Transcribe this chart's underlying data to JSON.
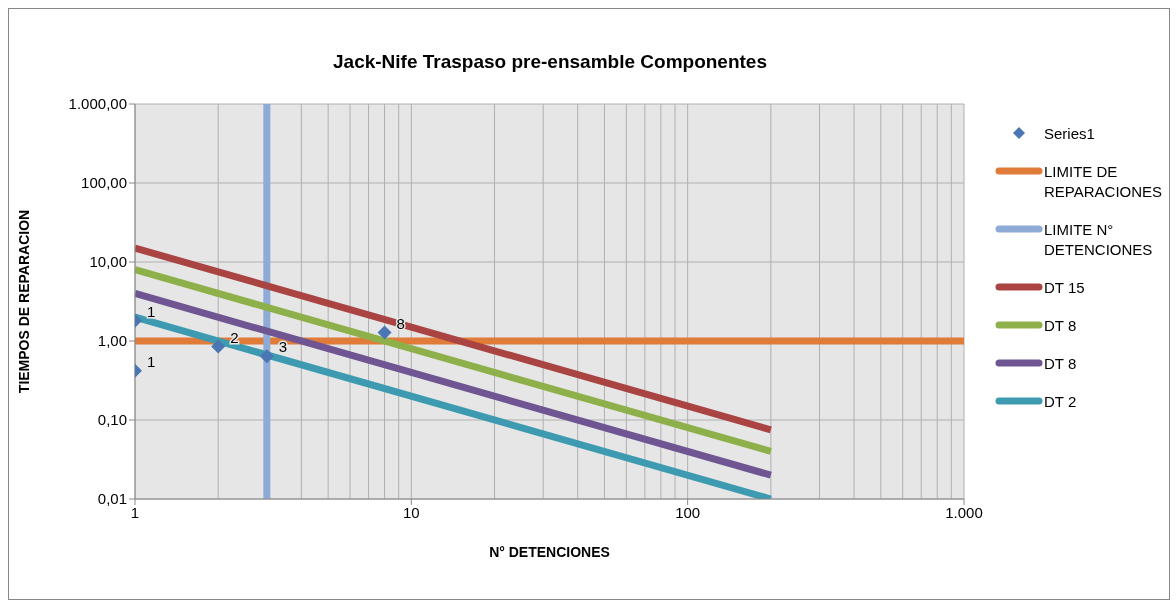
{
  "chart_data": {
    "type": "line",
    "title": "Jack-Nife Traspaso pre-ensamble Componentes",
    "xlabel": "N° DETENCIONES",
    "ylabel": "TIEMPOS DE REPARACION",
    "annotations": [
      {
        "text": "1",
        "x": 1,
        "y": 1.8
      },
      {
        "text": "1",
        "x": 1,
        "y": 0.42
      },
      {
        "text": "2",
        "x": 2,
        "y": 0.85
      },
      {
        "text": "3",
        "x": 3,
        "y": 0.64
      },
      {
        "text": "8",
        "x": 8,
        "y": 1.28
      }
    ],
    "log": "xy",
    "grid": true,
    "legend": "right",
    "xlim": [
      1,
      1000
    ],
    "xticks": [
      1,
      10,
      100,
      {
        "value": 1000,
        "label": "1.000"
      }
    ],
    "ylim": [
      0.01,
      1000
    ],
    "yticks": [
      {
        "value": 0.01,
        "label": "0,01"
      },
      {
        "value": 0.1,
        "label": "0,10"
      },
      {
        "value": 1,
        "label": "1,00"
      },
      {
        "value": 10,
        "label": "10,00"
      },
      {
        "value": 100,
        "label": "100,00"
      },
      {
        "value": 1000,
        "label": "1.000,00"
      }
    ],
    "series": [
      {
        "name": "Series1",
        "type": "scatter",
        "marker": "diamond",
        "color": "#4a77b4",
        "x": [
          1,
          1,
          2,
          3,
          8
        ],
        "values": [
          1.8,
          0.42,
          0.85,
          0.64,
          1.28
        ]
      },
      {
        "name": "LIMITE DE REPARACIONES",
        "color": "#e07b39",
        "x": [
          1,
          1000
        ],
        "values": [
          1,
          1
        ]
      },
      {
        "name": "LIMITE N° DETENCIONES",
        "color": "#8eaad6",
        "x": [
          3,
          3
        ],
        "values": [
          0.01,
          1000
        ]
      },
      {
        "name": "DT 15",
        "color": "#a94442",
        "x": [
          1,
          200
        ],
        "values": [
          15,
          0.075
        ]
      },
      {
        "name": "DT 8",
        "color": "#8db04a",
        "x": [
          1,
          200
        ],
        "values": [
          8,
          0.04
        ]
      },
      {
        "name": "DT 8",
        "color": "#6f5592",
        "x": [
          1,
          200
        ],
        "values": [
          4,
          0.02
        ]
      },
      {
        "name": "DT 2",
        "color": "#3d9ab0",
        "x": [
          1,
          200
        ],
        "values": [
          2,
          0.01
        ]
      }
    ]
  }
}
